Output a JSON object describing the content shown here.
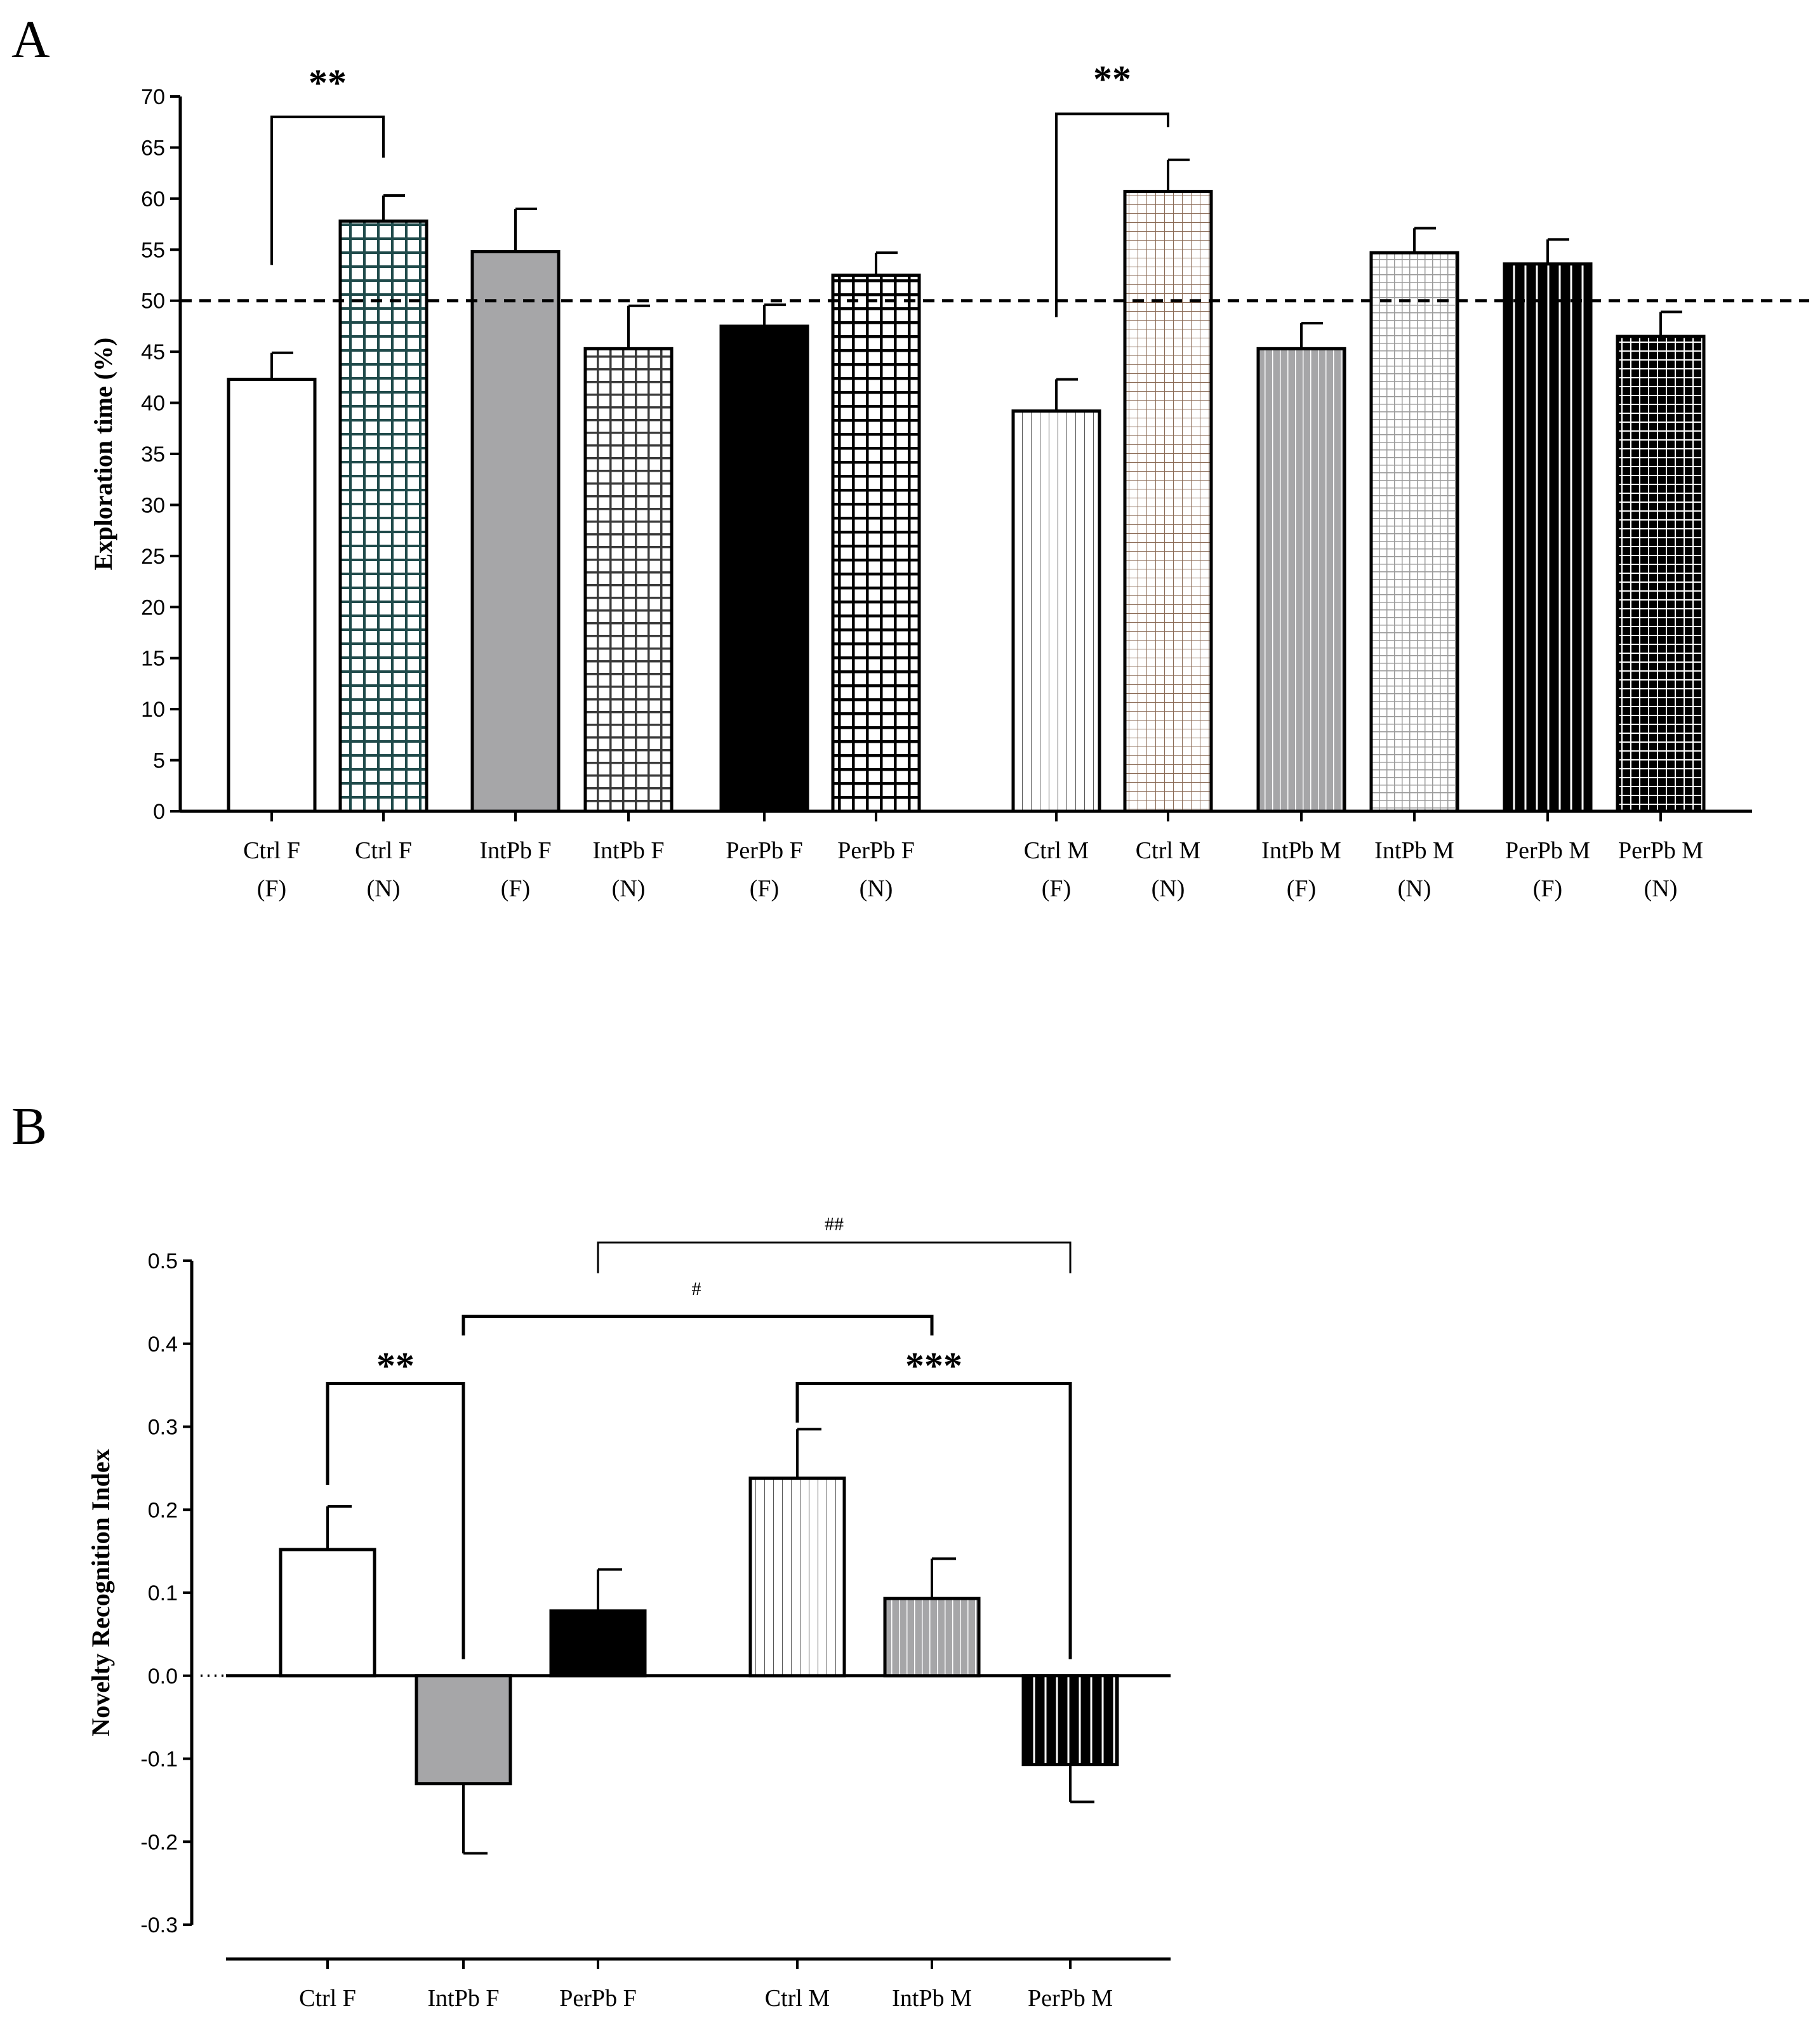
{
  "colors": {
    "black": "#000000",
    "gray": "#a6a6a8",
    "white": "#ffffff",
    "teal_grid": "#1f4a4a",
    "brown_grid": "#8a6a55"
  },
  "chart_data": [
    {
      "panel": "A",
      "type": "bar",
      "ylabel": "Exploration time (%)",
      "ylim": [
        0,
        70
      ],
      "yticks": [
        0,
        5,
        10,
        15,
        20,
        25,
        30,
        35,
        40,
        45,
        50,
        55,
        60,
        65,
        70
      ],
      "reference_line": 50,
      "categories": [
        [
          "Ctrl F",
          "(F)"
        ],
        [
          "Ctrl F",
          "(N)"
        ],
        [
          "IntPb F",
          "(F)"
        ],
        [
          "IntPb F",
          "(N)"
        ],
        [
          "PerPb F",
          "(F)"
        ],
        [
          "PerPb F",
          "(N)"
        ],
        [
          "Ctrl M",
          "(F)"
        ],
        [
          "Ctrl M",
          "(N)"
        ],
        [
          "IntPb M",
          "(F)"
        ],
        [
          "IntPb M",
          "(N)"
        ],
        [
          "PerPb M",
          "(F)"
        ],
        [
          "PerPb M",
          "(N)"
        ]
      ],
      "values": [
        42.3,
        57.8,
        54.8,
        45.3,
        47.5,
        52.5,
        39.2,
        60.7,
        45.3,
        54.7,
        53.6,
        46.5
      ],
      "errors": [
        2.6,
        2.5,
        4.2,
        4.2,
        2.1,
        2.2,
        3.1,
        3.1,
        2.5,
        2.4,
        2.4,
        2.4
      ],
      "patterns": [
        "white",
        "teal-grid",
        "gray",
        "dark-grid",
        "black",
        "white-grid",
        "vlines-fine",
        "brown-grid",
        "gray-vlines",
        "gray-grid",
        "black-vlines",
        "black-grid"
      ],
      "significance": [
        {
          "from": 0,
          "to": 1,
          "label": "**"
        },
        {
          "from": 6,
          "to": 7,
          "label": "**"
        }
      ]
    },
    {
      "panel": "B",
      "type": "bar",
      "ylabel": "Novelty Recognition Index",
      "ylim": [
        -0.3,
        0.5
      ],
      "yticks": [
        -0.3,
        -0.2,
        -0.1,
        0.0,
        0.1,
        0.2,
        0.3,
        0.4,
        0.5
      ],
      "ytick_labels": [
        "-0.3",
        "-0.2",
        "-0.1",
        "0.0",
        "0.1",
        "0.2",
        "0.3",
        "0.4",
        "0.5"
      ],
      "categories": [
        "Ctrl F",
        "IntPb F",
        "PerPb F",
        "Ctrl M",
        "IntPb M",
        "PerPb M"
      ],
      "values": [
        0.152,
        -0.13,
        0.078,
        0.238,
        0.093,
        -0.107
      ],
      "errors": [
        0.052,
        0.084,
        0.05,
        0.059,
        0.048,
        0.045
      ],
      "patterns": [
        "white",
        "gray",
        "black",
        "vlines-fine",
        "gray-vlines",
        "black-vlines"
      ],
      "significance": [
        {
          "from": 0,
          "to": 1,
          "label": "**",
          "style": "big"
        },
        {
          "from": 3,
          "to": 5,
          "label": "***",
          "style": "big"
        },
        {
          "from": 1,
          "to": 4,
          "label": "#",
          "style": "small"
        },
        {
          "from": 2,
          "to": 5,
          "label": "##",
          "style": "small"
        }
      ]
    }
  ]
}
